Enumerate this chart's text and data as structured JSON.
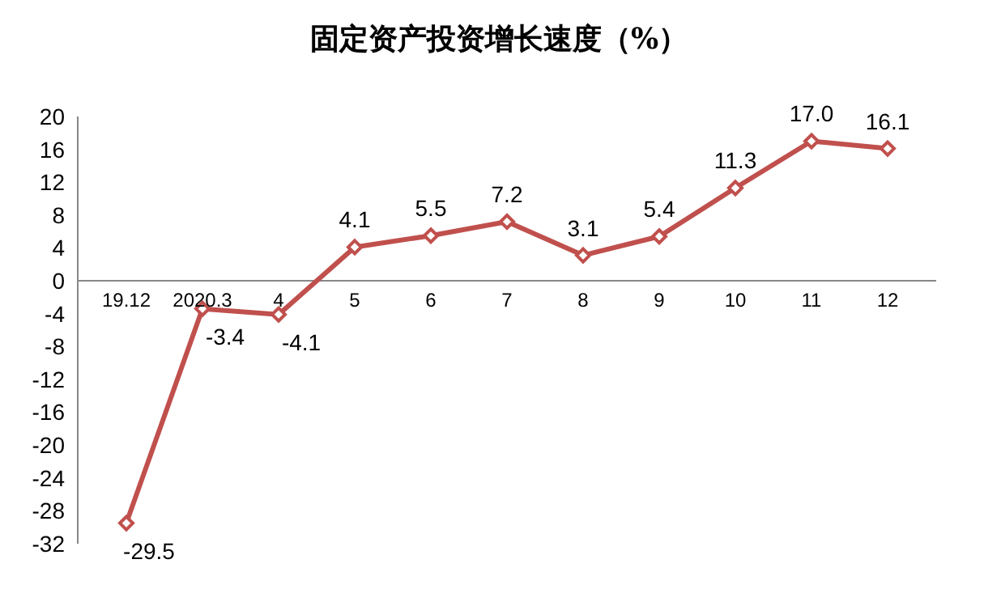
{
  "chart_data": {
    "type": "line",
    "title": "固定资产投资增长速度（%）",
    "categories": [
      "19.12",
      "2020.3",
      "4",
      "5",
      "6",
      "7",
      "8",
      "9",
      "10",
      "11",
      "12"
    ],
    "series": [
      {
        "color": "#c0504d",
        "values": [
          -29.5,
          -3.4,
          -4.1,
          4.1,
          5.5,
          7.2,
          3.1,
          5.4,
          11.3,
          17.0,
          16.1
        ],
        "value_labels": [
          "-29.5",
          "-3.4",
          "-4.1",
          "4.1",
          "5.5",
          "7.2",
          "3.1",
          "5.4",
          "11.3",
          "17.0",
          "16.1"
        ]
      }
    ],
    "ylim": [
      -32,
      20
    ],
    "yticks": [
      20,
      16,
      12,
      8,
      4,
      0,
      -4,
      -8,
      -12,
      -16,
      -20,
      -24,
      -28,
      -32
    ],
    "marker": "diamond",
    "line_style": "solid"
  }
}
